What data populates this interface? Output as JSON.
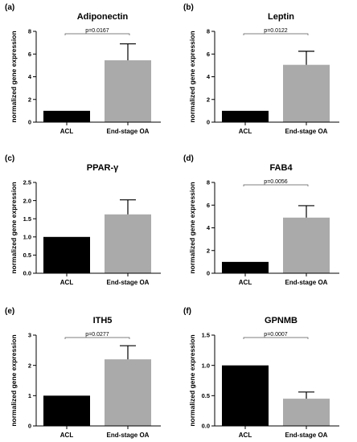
{
  "chart_data": [
    {
      "type": "bar",
      "panel": "(a)",
      "title": "Adiponectin",
      "ylabel": "normalized gene expression",
      "xlabel": "",
      "categories": [
        "ACL",
        "End-stage OA"
      ],
      "values": [
        1.0,
        5.45
      ],
      "errors": [
        0.0,
        1.45
      ],
      "ylim": [
        0,
        8
      ],
      "yticks": [
        0,
        2,
        4,
        6,
        8
      ],
      "ytick_labels": [
        "0",
        "2",
        "4",
        "6",
        "8"
      ],
      "annotation": "p=0.0167",
      "bar_colors": [
        "#000000",
        "#aaaaaa"
      ]
    },
    {
      "type": "bar",
      "panel": "(b)",
      "title": "Leptin",
      "ylabel": "normalized gene expression",
      "xlabel": "",
      "categories": [
        "ACL",
        "End-stage OA"
      ],
      "values": [
        1.0,
        5.05
      ],
      "errors": [
        0.0,
        1.2
      ],
      "ylim": [
        0,
        8
      ],
      "yticks": [
        0,
        2,
        4,
        6,
        8
      ],
      "ytick_labels": [
        "0",
        "2",
        "4",
        "6",
        "8"
      ],
      "annotation": "p=0.0122",
      "bar_colors": [
        "#000000",
        "#aaaaaa"
      ]
    },
    {
      "type": "bar",
      "panel": "(c)",
      "title": "PPAR-γ",
      "ylabel": "normalized gene expression",
      "xlabel": "",
      "categories": [
        "ACL",
        "End-stage OA"
      ],
      "values": [
        1.0,
        1.62
      ],
      "errors": [
        0.0,
        0.4
      ],
      "ylim": [
        0,
        2.5
      ],
      "yticks": [
        0,
        0.5,
        1.0,
        1.5,
        2.0,
        2.5
      ],
      "ytick_labels": [
        "0.0",
        "0.5",
        "1.0",
        "1.5",
        "2.0",
        "2.5"
      ],
      "annotation": "",
      "bar_colors": [
        "#000000",
        "#aaaaaa"
      ]
    },
    {
      "type": "bar",
      "panel": "(d)",
      "title": "FAB4",
      "ylabel": "normalized gene expression",
      "xlabel": "",
      "categories": [
        "ACL",
        "End-stage OA"
      ],
      "values": [
        1.0,
        4.9
      ],
      "errors": [
        0.0,
        1.05
      ],
      "ylim": [
        0,
        8
      ],
      "yticks": [
        0,
        2,
        4,
        6,
        8
      ],
      "ytick_labels": [
        "0",
        "2",
        "4",
        "6",
        "8"
      ],
      "annotation": "p=0.0056",
      "bar_colors": [
        "#000000",
        "#aaaaaa"
      ]
    },
    {
      "type": "bar",
      "panel": "(e)",
      "title": "ITH5",
      "ylabel": "normalized gene expression",
      "xlabel": "",
      "categories": [
        "ACL",
        "End-stage OA"
      ],
      "values": [
        1.0,
        2.2
      ],
      "errors": [
        0.0,
        0.45
      ],
      "ylim": [
        0,
        3
      ],
      "yticks": [
        0,
        1,
        2,
        3
      ],
      "ytick_labels": [
        "0",
        "1",
        "2",
        "3"
      ],
      "annotation": "p=0.0277",
      "bar_colors": [
        "#000000",
        "#aaaaaa"
      ]
    },
    {
      "type": "bar",
      "panel": "(f)",
      "title": "GPNMB",
      "ylabel": "normalized gene expression",
      "xlabel": "",
      "categories": [
        "ACL",
        "End-stage OA"
      ],
      "values": [
        1.0,
        0.45
      ],
      "errors": [
        0.0,
        0.11
      ],
      "ylim": [
        0,
        1.5
      ],
      "yticks": [
        0,
        0.5,
        1.0,
        1.5
      ],
      "ytick_labels": [
        "0.0",
        "0.5",
        "1.0",
        "1.5"
      ],
      "annotation": "p=0.0007",
      "bar_colors": [
        "#000000",
        "#aaaaaa"
      ]
    }
  ]
}
